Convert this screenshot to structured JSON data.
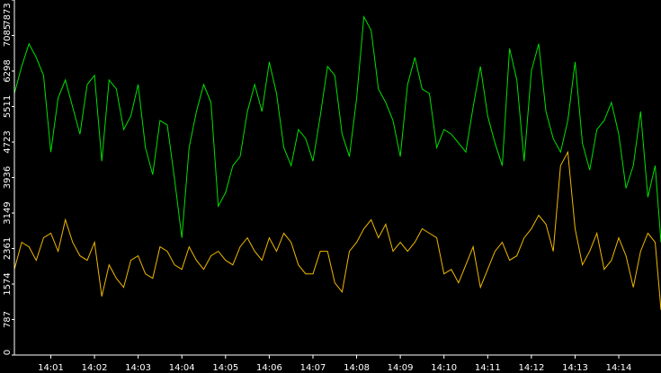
{
  "chart_data": {
    "type": "line",
    "title": "",
    "xlabel": "",
    "ylabel": "",
    "ylim": [
      0,
      7873
    ],
    "y_ticks": [
      0,
      787,
      1574,
      2361,
      3149,
      3936,
      4723,
      5511,
      6298,
      7085,
      7873
    ],
    "y_tick_labels": [
      "0",
      "787",
      "1574",
      "2361",
      "3149",
      "3936",
      "4723",
      "5511",
      "6298",
      "7085",
      "7873"
    ],
    "xlim": [
      "14:00:10",
      "14:14:58"
    ],
    "x_tick_labels": [
      "14:01",
      "14:02",
      "14:03",
      "14:04",
      "14:05",
      "14:06",
      "14:07",
      "14:08",
      "14:09",
      "14:10",
      "14:11",
      "14:12",
      "14:13",
      "14:14"
    ],
    "grid": false,
    "legend": "none",
    "background": "#000000",
    "axis_color": "#ffffff",
    "series": [
      {
        "color": "#00e000",
        "x": [
          "14:00:10",
          "14:00:20",
          "14:00:30",
          "14:00:40",
          "14:00:50",
          "14:01:00",
          "14:01:10",
          "14:01:20",
          "14:01:30",
          "14:01:40",
          "14:01:50",
          "14:02:00",
          "14:02:10",
          "14:02:20",
          "14:02:30",
          "14:02:40",
          "14:02:50",
          "14:03:00",
          "14:03:10",
          "14:03:20",
          "14:03:30",
          "14:03:40",
          "14:03:50",
          "14:04:00",
          "14:04:10",
          "14:04:20",
          "14:04:30",
          "14:04:40",
          "14:04:50",
          "14:05:00",
          "14:05:10",
          "14:05:20",
          "14:05:30",
          "14:05:40",
          "14:05:50",
          "14:06:00",
          "14:06:10",
          "14:06:20",
          "14:06:30",
          "14:06:40",
          "14:06:50",
          "14:07:00",
          "14:07:10",
          "14:07:20",
          "14:07:30",
          "14:07:40",
          "14:07:50",
          "14:08:00",
          "14:08:10",
          "14:08:20",
          "14:08:30",
          "14:08:40",
          "14:08:50",
          "14:09:00",
          "14:09:10",
          "14:09:20",
          "14:09:30",
          "14:09:40",
          "14:09:50",
          "14:10:00",
          "14:10:10",
          "14:10:20",
          "14:10:30",
          "14:10:40",
          "14:10:50",
          "14:11:00",
          "14:11:10",
          "14:11:20",
          "14:11:30",
          "14:11:40",
          "14:11:50",
          "14:12:00",
          "14:12:10",
          "14:12:20",
          "14:12:30",
          "14:12:40",
          "14:12:50",
          "14:13:00",
          "14:13:10",
          "14:13:20",
          "14:13:30",
          "14:13:40",
          "14:13:50",
          "14:14:00",
          "14:14:10",
          "14:14:20",
          "14:14:30",
          "14:14:40",
          "14:14:50",
          "14:14:58"
        ],
        "values": [
          5800,
          6400,
          6900,
          6600,
          6200,
          4500,
          5700,
          6100,
          5500,
          4900,
          6000,
          6200,
          4300,
          6100,
          5900,
          5000,
          5300,
          6000,
          4600,
          4000,
          5200,
          5100,
          3900,
          2600,
          4600,
          5400,
          6000,
          5600,
          3300,
          3600,
          4200,
          4400,
          5400,
          6000,
          5400,
          6500,
          5800,
          4600,
          4200,
          5000,
          4800,
          4300,
          5300,
          6400,
          6200,
          4900,
          4400,
          5700,
          7500,
          7200,
          5900,
          5600,
          5200,
          4400,
          6000,
          6600,
          5900,
          5800,
          4600,
          5000,
          4900,
          4700,
          4500,
          5500,
          6400,
          5300,
          4700,
          4200,
          6800,
          6100,
          4300,
          6300,
          6900,
          5400,
          4800,
          4500,
          5200,
          6500,
          4700,
          4100,
          5000,
          5200,
          5600,
          4900,
          3700,
          4200,
          5400,
          3500,
          4200,
          2500
        ]
      },
      {
        "color": "#f0b800",
        "x": [
          "14:00:10",
          "14:00:20",
          "14:00:30",
          "14:00:40",
          "14:00:50",
          "14:01:00",
          "14:01:10",
          "14:01:20",
          "14:01:30",
          "14:01:40",
          "14:01:50",
          "14:02:00",
          "14:02:10",
          "14:02:20",
          "14:02:30",
          "14:02:40",
          "14:02:50",
          "14:03:00",
          "14:03:10",
          "14:03:20",
          "14:03:30",
          "14:03:40",
          "14:03:50",
          "14:04:00",
          "14:04:10",
          "14:04:20",
          "14:04:30",
          "14:04:40",
          "14:04:50",
          "14:05:00",
          "14:05:10",
          "14:05:20",
          "14:05:30",
          "14:05:40",
          "14:05:50",
          "14:06:00",
          "14:06:10",
          "14:06:20",
          "14:06:30",
          "14:06:40",
          "14:06:50",
          "14:07:00",
          "14:07:10",
          "14:07:20",
          "14:07:30",
          "14:07:40",
          "14:07:50",
          "14:08:00",
          "14:08:10",
          "14:08:20",
          "14:08:30",
          "14:08:40",
          "14:08:50",
          "14:09:00",
          "14:09:10",
          "14:09:20",
          "14:09:30",
          "14:09:40",
          "14:09:50",
          "14:10:00",
          "14:10:10",
          "14:10:20",
          "14:10:30",
          "14:10:40",
          "14:10:50",
          "14:11:00",
          "14:11:10",
          "14:11:20",
          "14:11:30",
          "14:11:40",
          "14:11:50",
          "14:12:00",
          "14:12:10",
          "14:12:20",
          "14:12:30",
          "14:12:40",
          "14:12:50",
          "14:13:00",
          "14:13:10",
          "14:13:20",
          "14:13:30",
          "14:13:40",
          "14:13:50",
          "14:14:00",
          "14:14:10",
          "14:14:20",
          "14:14:30",
          "14:14:40",
          "14:14:50",
          "14:14:58"
        ],
        "values": [
          1900,
          2500,
          2400,
          2100,
          2600,
          2700,
          2300,
          3000,
          2500,
          2200,
          2100,
          2500,
          1300,
          2000,
          1700,
          1500,
          2100,
          2200,
          1800,
          1700,
          2400,
          2300,
          2000,
          1900,
          2400,
          2100,
          1900,
          2200,
          2300,
          2100,
          2000,
          2400,
          2600,
          2300,
          2100,
          2600,
          2300,
          2700,
          2500,
          2000,
          1800,
          1800,
          2300,
          2300,
          1600,
          1400,
          2300,
          2500,
          2800,
          3000,
          2600,
          2900,
          2300,
          2500,
          2300,
          2500,
          2800,
          2700,
          2600,
          1800,
          1900,
          1600,
          2000,
          2400,
          1500,
          1900,
          2300,
          2500,
          2100,
          2200,
          2600,
          2800,
          3100,
          2900,
          2300,
          4200,
          4500,
          2800,
          2000,
          2300,
          2700,
          1900,
          2100,
          2600,
          2200,
          1500,
          2300,
          2700,
          2500,
          1000
        ]
      }
    ]
  }
}
